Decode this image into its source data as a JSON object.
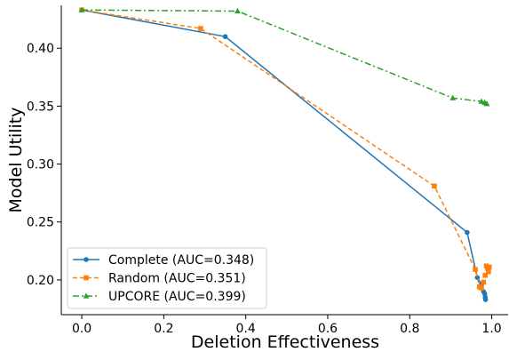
{
  "chart_data": {
    "type": "line",
    "title": "",
    "xlabel": "Deletion Effectiveness",
    "ylabel": "Model Utility",
    "xlim": [
      -0.05,
      1.04
    ],
    "ylim": [
      0.17,
      0.437
    ],
    "xticks": [
      0.0,
      0.2,
      0.4,
      0.6,
      0.8,
      1.0
    ],
    "xtick_labels": [
      "0.0",
      "0.2",
      "0.4",
      "0.6",
      "0.8",
      "1.0"
    ],
    "yticks": [
      0.2,
      0.25,
      0.3,
      0.35,
      0.4
    ],
    "ytick_labels": [
      "0.20",
      "0.25",
      "0.30",
      "0.35",
      "0.40"
    ],
    "grid": false,
    "legend_position": "bottom-left",
    "series": [
      {
        "name": "Complete (AUC=0.348)",
        "color": "#1f77b4",
        "marker": "circle",
        "linestyle": "solid",
        "points": [
          [
            0.0,
            0.433
          ],
          [
            0.35,
            0.41
          ],
          [
            0.94,
            0.241
          ],
          [
            0.965,
            0.202
          ],
          [
            0.975,
            0.196
          ],
          [
            0.98,
            0.19
          ],
          [
            0.983,
            0.188
          ],
          [
            0.984,
            0.185
          ],
          [
            0.985,
            0.183
          ]
        ]
      },
      {
        "name": "Random (AUC=0.351)",
        "color": "#ff7f0e",
        "marker": "square",
        "linestyle": "dashed",
        "points": [
          [
            0.0,
            0.433
          ],
          [
            0.29,
            0.417
          ],
          [
            0.86,
            0.281
          ],
          [
            0.96,
            0.209
          ],
          [
            0.97,
            0.194
          ],
          [
            0.975,
            0.193
          ],
          [
            0.98,
            0.198
          ],
          [
            0.984,
            0.204
          ],
          [
            0.987,
            0.212
          ],
          [
            0.99,
            0.21
          ],
          [
            0.992,
            0.207
          ],
          [
            0.994,
            0.211
          ]
        ]
      },
      {
        "name": "UPCORE (AUC=0.399)",
        "color": "#2ca02c",
        "marker": "triangle",
        "linestyle": "dashdot",
        "points": [
          [
            0.0,
            0.433
          ],
          [
            0.38,
            0.432
          ],
          [
            0.905,
            0.357
          ],
          [
            0.975,
            0.354
          ],
          [
            0.983,
            0.353
          ],
          [
            0.988,
            0.352
          ]
        ]
      }
    ]
  }
}
